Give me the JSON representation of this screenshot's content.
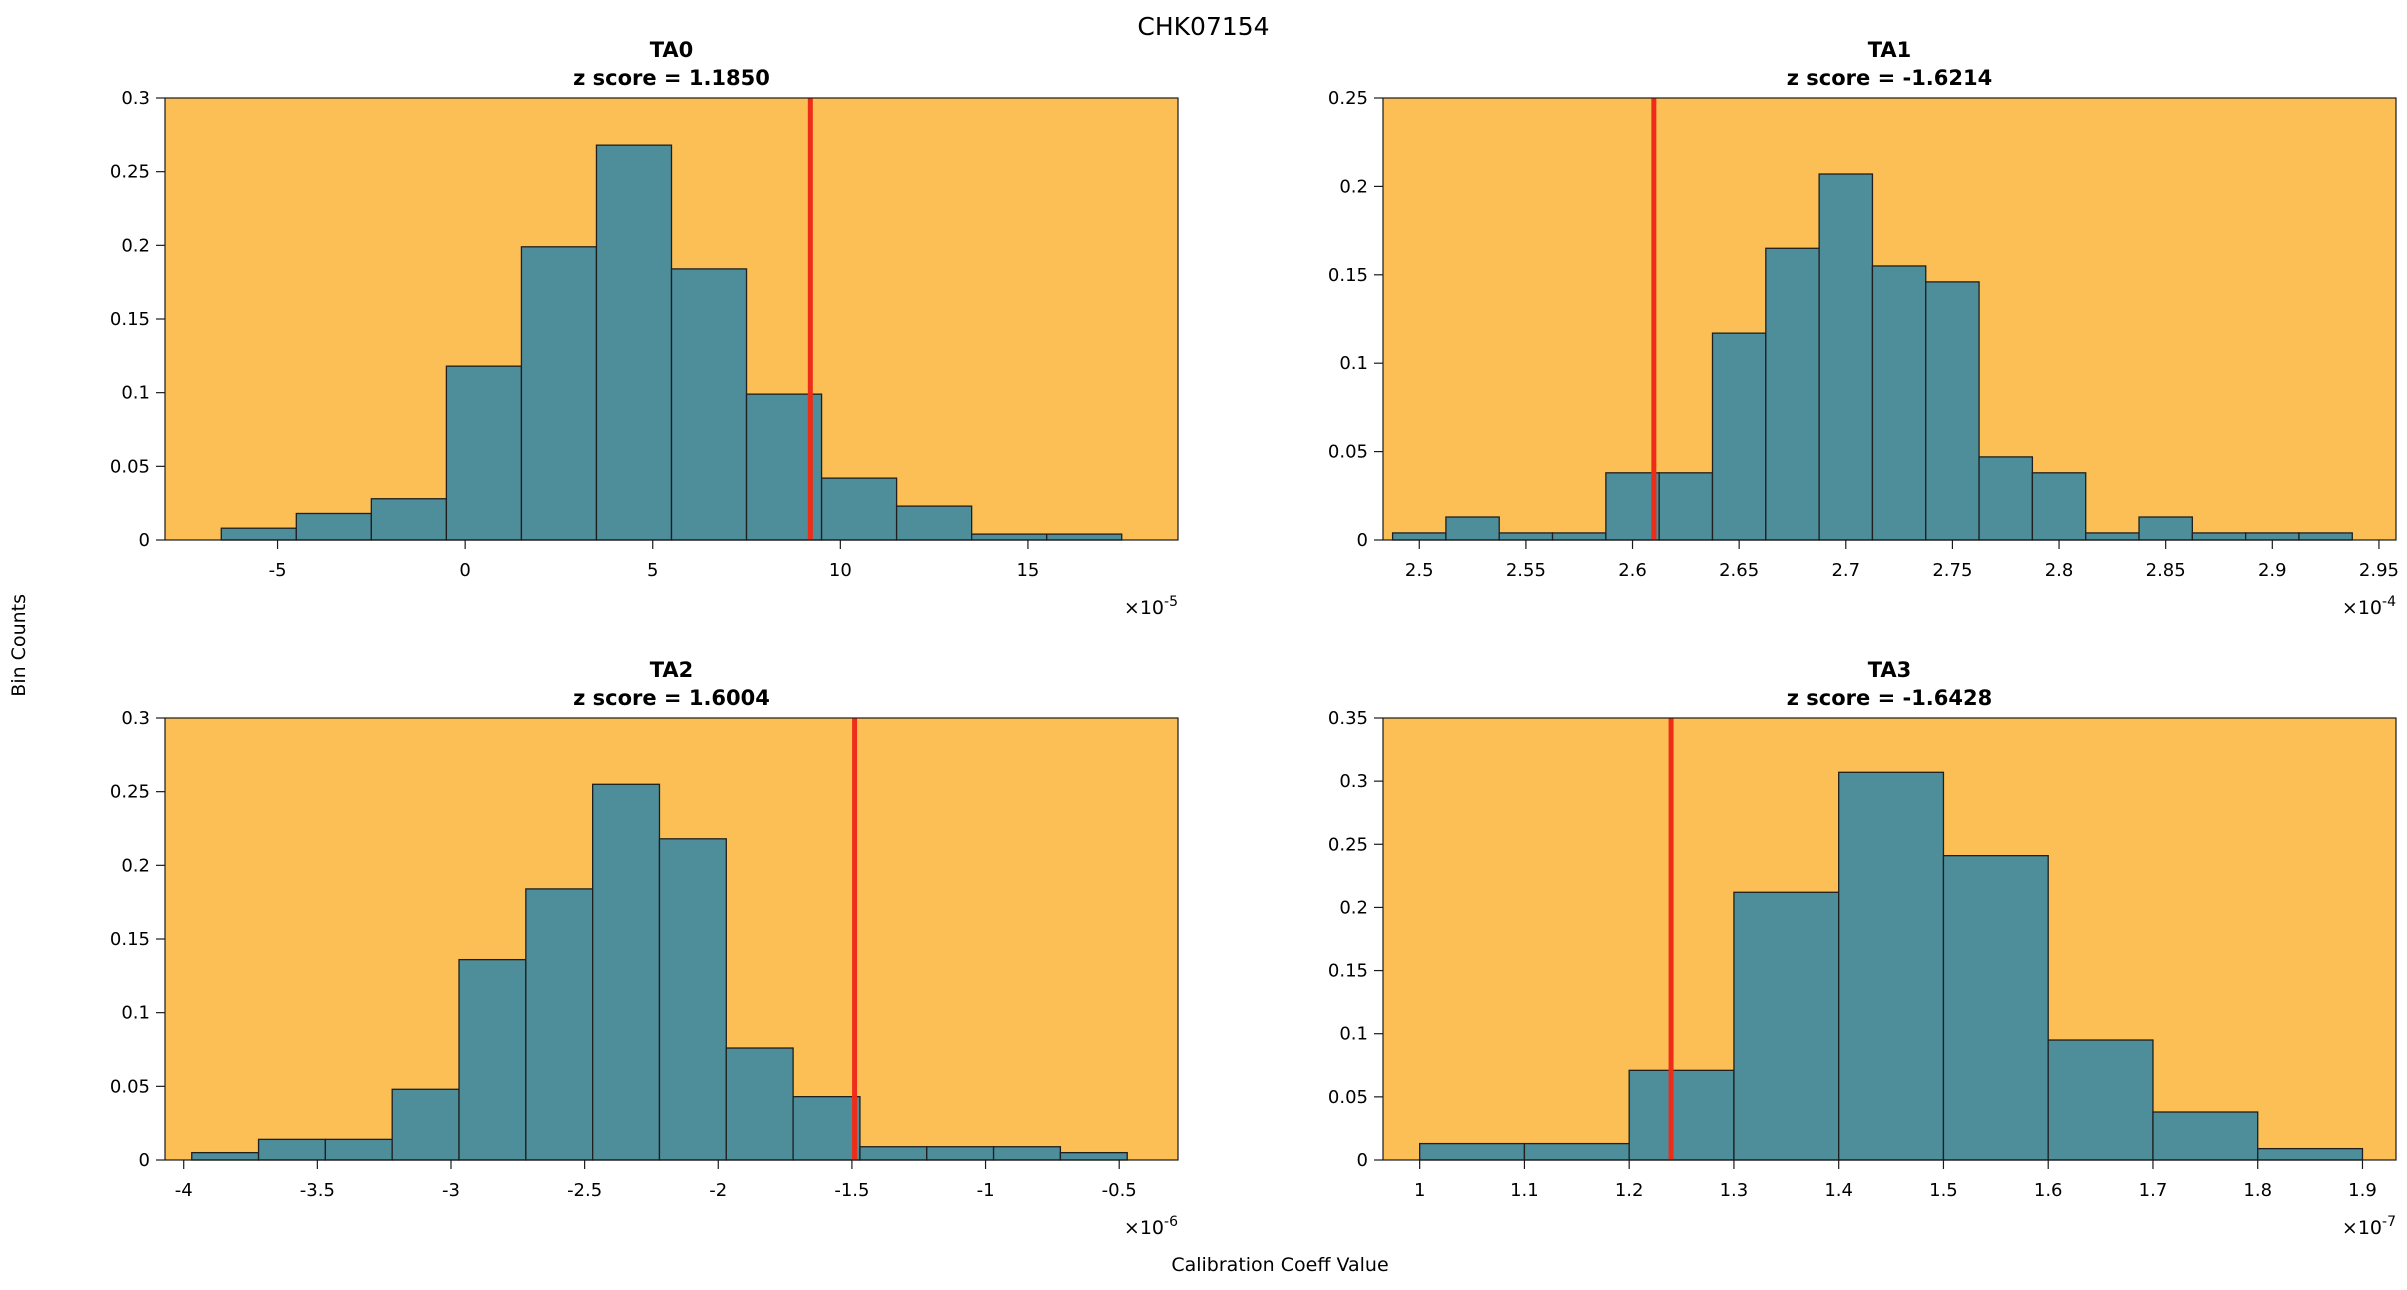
{
  "figure": {
    "title": "CHK07154",
    "xlabel": "Calibration Coeff Value",
    "ylabel": "Bin Counts"
  },
  "style": {
    "plot_bg": "#fbbf56",
    "bar_fill": "#4e8d9a",
    "bar_stroke": "#1f1f1f",
    "red_line": "#ee2d18",
    "axis_color": "#1a1a1a",
    "text_color": "#000000"
  },
  "chart_data": [
    {
      "type": "bar",
      "title": "TA0",
      "subtitle": "z score = 1.1850",
      "z_score": 1.185,
      "bin_start": -6.5,
      "bin_width": 2,
      "values": [
        0.008,
        0.018,
        0.028,
        0.118,
        0.199,
        0.268,
        0.184,
        0.099,
        0.042,
        0.023,
        0.004,
        0.004
      ],
      "marker_x": 9.2,
      "xlim": [
        -8,
        19
      ],
      "ylim": [
        0,
        0.3
      ],
      "xticks": [
        -5,
        0,
        5,
        10,
        15
      ],
      "yticks": [
        0,
        0.05,
        0.1,
        0.15,
        0.2,
        0.25,
        0.3
      ],
      "x_scale_label": {
        "base": "×10",
        "exponent": "-5"
      }
    },
    {
      "type": "bar",
      "title": "TA1",
      "subtitle": "z score = -1.6214",
      "z_score": -1.6214,
      "bin_start": 2.4875,
      "bin_width": 0.025,
      "values": [
        0.004,
        0.013,
        0.004,
        0.004,
        0.038,
        0.038,
        0.117,
        0.165,
        0.207,
        0.155,
        0.146,
        0.047,
        0.038,
        0.004,
        0.013,
        0.004,
        0.004,
        0.004
      ],
      "marker_x": 2.61,
      "xlim": [
        2.483,
        2.958
      ],
      "ylim": [
        0,
        0.25
      ],
      "xticks": [
        2.5,
        2.55,
        2.6,
        2.65,
        2.7,
        2.75,
        2.8,
        2.85,
        2.9,
        2.95
      ],
      "yticks": [
        0,
        0.05,
        0.1,
        0.15,
        0.2,
        0.25
      ],
      "x_scale_label": {
        "base": "×10",
        "exponent": "-4"
      }
    },
    {
      "type": "bar",
      "title": "TA2",
      "subtitle": "z score = 1.6004",
      "z_score": 1.6004,
      "bin_start": -3.97,
      "bin_width": 0.25,
      "values": [
        0.005,
        0.014,
        0.014,
        0.048,
        0.136,
        0.184,
        0.255,
        0.218,
        0.076,
        0.043,
        0.009,
        0.009,
        0.009,
        0.005
      ],
      "marker_x": -1.49,
      "xlim": [
        -4.07,
        -0.28
      ],
      "ylim": [
        0,
        0.3
      ],
      "xticks": [
        -4,
        -3.5,
        -3,
        -2.5,
        -2,
        -1.5,
        -1,
        -0.5
      ],
      "yticks": [
        0,
        0.05,
        0.1,
        0.15,
        0.2,
        0.25,
        0.3
      ],
      "x_scale_label": {
        "base": "×10",
        "exponent": "-6"
      }
    },
    {
      "type": "bar",
      "title": "TA3",
      "subtitle": "z score = -1.6428",
      "z_score": -1.6428,
      "bin_start": 1.0,
      "bin_width": 0.1,
      "values": [
        0.013,
        0.013,
        0.071,
        0.212,
        0.307,
        0.241,
        0.095,
        0.038,
        0.009
      ],
      "marker_x": 1.24,
      "xlim": [
        0.965,
        1.932
      ],
      "ylim": [
        0,
        0.35
      ],
      "xticks": [
        1,
        1.1,
        1.2,
        1.3,
        1.4,
        1.5,
        1.6,
        1.7,
        1.8,
        1.9
      ],
      "yticks": [
        0,
        0.05,
        0.1,
        0.15,
        0.2,
        0.25,
        0.3,
        0.35
      ],
      "x_scale_label": {
        "base": "×10",
        "exponent": "-7"
      }
    }
  ]
}
